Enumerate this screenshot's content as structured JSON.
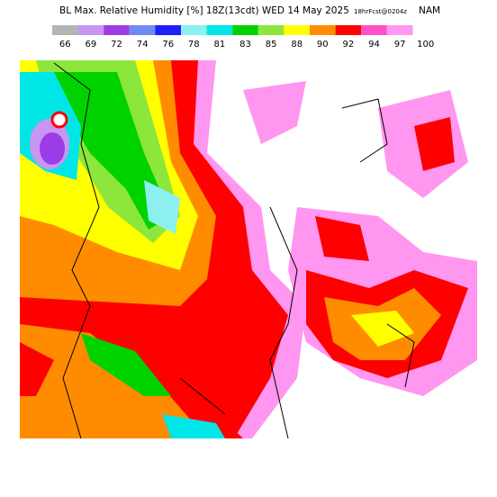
{
  "header": {
    "title": "BL Max. Relative Humidity [%] 18Z(13cdt) WED 14 May 2025",
    "forecast": "18hrFcst@0204z",
    "model": "NAM"
  },
  "legend": {
    "colors": [
      "#b4b4b4",
      "#c896f0",
      "#9b3ce6",
      "#6e8cf0",
      "#1e1eff",
      "#8cf0f0",
      "#00e6e6",
      "#00d200",
      "#8ce63c",
      "#ffff00",
      "#ff8c00",
      "#ff0000",
      "#ff50c8",
      "#ff96f0"
    ],
    "labels": [
      66,
      69,
      72,
      74,
      76,
      78,
      81,
      83,
      85,
      88,
      90,
      92,
      94,
      97,
      100
    ]
  }
}
